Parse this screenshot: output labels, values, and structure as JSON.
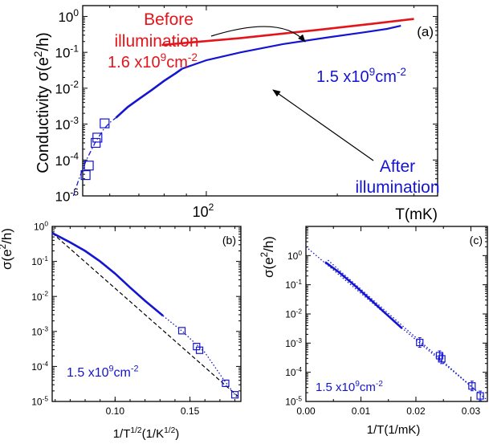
{
  "colors": {
    "red": "#e4141b",
    "blue": "#1414d2",
    "black": "#000000"
  },
  "chart_data": [
    {
      "id": "a",
      "type": "line",
      "panel_label": "(a)",
      "xlabel": "T(mK)",
      "ylabel_main": "Conductivity σ(e",
      "ylabel_sup": "2",
      "ylabel_end": "/h)",
      "x_scale": "log",
      "y_scale": "log",
      "xlim": [
        52,
        340
      ],
      "ylim": [
        1e-05,
        2
      ],
      "xticks": [
        {
          "value": 100,
          "base": "10",
          "exp": "2"
        }
      ],
      "yticks": [
        {
          "value": 1,
          "base": "10",
          "exp": "0"
        },
        {
          "value": 0.1,
          "base": "10",
          "exp": "-1"
        },
        {
          "value": 0.01,
          "base": "10",
          "exp": "-2"
        },
        {
          "value": 0.001,
          "base": "10",
          "exp": "-3"
        },
        {
          "value": 0.0001,
          "base": "10",
          "exp": "-4"
        },
        {
          "value": 1e-05,
          "base": "10",
          "exp": "-5"
        }
      ],
      "series": [
        {
          "style": "red-line",
          "x": [
            79,
            120,
            180,
            240,
            300
          ],
          "y": [
            0.16,
            0.25,
            0.42,
            0.62,
            0.85
          ]
        },
        {
          "style": "blue-line",
          "x": [
            88,
            100,
            120,
            150,
            190,
            230,
            260,
            280
          ],
          "y": [
            0.035,
            0.06,
            0.1,
            0.17,
            0.26,
            0.36,
            0.45,
            0.55
          ]
        },
        {
          "style": "blue-thick",
          "x": [
            62,
            66,
            70,
            75,
            80,
            85,
            88
          ],
          "y": [
            0.0015,
            0.003,
            0.005,
            0.009,
            0.016,
            0.026,
            0.035
          ]
        },
        {
          "style": "blue-dashdot",
          "x": [
            49.5,
            51,
            53,
            55.5,
            58,
            60,
            62
          ],
          "y": [
            1e-05,
            3e-05,
            0.0001,
            0.0003,
            0.0007,
            0.0011,
            0.0015
          ]
        },
        {
          "style": "blue-squares",
          "x": [
            52.8,
            53.7,
            55.7,
            56.2,
            58.4
          ],
          "y": [
            3.8e-05,
            7e-05,
            0.0003,
            0.00042,
            0.00105
          ]
        }
      ],
      "annotations": {
        "before_line1": "Before",
        "before_line2": "illumination",
        "before_line3_main": "1.6 x10",
        "before_line3_sup1": "9",
        "before_line3_mid": "cm",
        "before_line3_sup2": "-2",
        "blue_density_main": "1.5 x10",
        "blue_density_sup1": "9",
        "blue_density_mid": "cm",
        "blue_density_sup2": "-2",
        "after_line1": "After",
        "after_line2": "illumination"
      }
    },
    {
      "id": "b",
      "type": "line",
      "panel_label": "(b)",
      "xlabel_main": "1/T",
      "xlabel_sup1": "1/2",
      "xlabel_mid": "(1/K",
      "xlabel_sup2": "1/2",
      "xlabel_end": ")",
      "ylabel_main": "σ(e",
      "ylabel_sup": "2",
      "ylabel_end": "/h)",
      "x_scale": "linear",
      "y_scale": "log",
      "xlim": [
        0.058,
        0.184
      ],
      "ylim": [
        1e-05,
        1
      ],
      "xticks": [
        {
          "value": 0.1,
          "label": "0.10"
        },
        {
          "value": 0.15,
          "label": "0.15"
        }
      ],
      "yticks": [
        {
          "value": 1,
          "base": "10",
          "exp": "0"
        },
        {
          "value": 0.1,
          "base": "10",
          "exp": "-1"
        },
        {
          "value": 0.01,
          "base": "10",
          "exp": "-2"
        },
        {
          "value": 0.001,
          "base": "10",
          "exp": "-3"
        },
        {
          "value": 0.0001,
          "base": "10",
          "exp": "-4"
        },
        {
          "value": 1e-05,
          "base": "10",
          "exp": "-5"
        }
      ],
      "series": [
        {
          "style": "black-dashed",
          "x": [
            0.058,
            0.182
          ],
          "y": [
            0.65,
            1.4e-05
          ]
        },
        {
          "style": "blue-thick",
          "x": [
            0.058,
            0.07,
            0.08,
            0.09,
            0.1,
            0.11,
            0.12,
            0.132
          ],
          "y": [
            0.65,
            0.35,
            0.2,
            0.1,
            0.045,
            0.018,
            0.0075,
            0.0028
          ]
        },
        {
          "style": "blue-dotted",
          "x": [
            0.132,
            0.145,
            0.16,
            0.172,
            0.182
          ],
          "y": [
            0.0028,
            0.001,
            0.00025,
            4.5e-05,
            1.2e-05
          ]
        },
        {
          "style": "blue-squares",
          "x": [
            0.1446,
            0.1544,
            0.1564,
            0.1738,
            0.18
          ],
          "y": [
            0.00105,
            0.00037,
            0.00029,
            3.3e-05,
            1.55e-05
          ]
        }
      ],
      "annotations": {
        "density_main": "1.5 x10",
        "density_sup1": "9",
        "density_mid": "cm",
        "density_sup2": "-2"
      }
    },
    {
      "id": "c",
      "type": "line",
      "panel_label": "(c)",
      "xlabel": "1/T(1/mK)",
      "ylabel_main": "σ(e",
      "ylabel_sup": "2",
      "ylabel_end": "/h)",
      "x_scale": "linear",
      "y_scale": "log",
      "xlim": [
        0,
        0.033
      ],
      "ylim": [
        1e-05,
        10
      ],
      "xticks": [
        {
          "value": 0,
          "label": "0.00"
        },
        {
          "value": 0.01,
          "label": "0.01"
        },
        {
          "value": 0.02,
          "label": "0.02"
        },
        {
          "value": 0.03,
          "label": "0.03"
        }
      ],
      "yticks": [
        {
          "value": 1,
          "base": "10",
          "exp": "0"
        },
        {
          "value": 0.1,
          "base": "10",
          "exp": "-1"
        },
        {
          "value": 0.01,
          "base": "10",
          "exp": "-2"
        },
        {
          "value": 0.001,
          "base": "10",
          "exp": "-3"
        },
        {
          "value": 0.0001,
          "base": "10",
          "exp": "-4"
        },
        {
          "value": 1e-05,
          "base": "10",
          "exp": "-5"
        }
      ],
      "series": [
        {
          "style": "blue-dotted",
          "x": [
            0,
            0.033
          ],
          "y": [
            2,
            1.1e-05
          ]
        },
        {
          "style": "blue-dotted",
          "x": [
            0.004,
            0.0325
          ],
          "y": [
            0.7,
            1.3e-05
          ]
        },
        {
          "style": "blue-thick",
          "x": [
            0.0035,
            0.006,
            0.009,
            0.012,
            0.015,
            0.0175
          ],
          "y": [
            0.6,
            0.27,
            0.09,
            0.028,
            0.0085,
            0.0032
          ]
        },
        {
          "style": "blue-squares-err",
          "x": [
            0.0207,
            0.0243,
            0.0247,
            0.0302,
            0.0317
          ],
          "y": [
            0.00105,
            0.00037,
            0.00029,
            3.4e-05,
            1.55e-05
          ]
        }
      ],
      "annotations": {
        "density_main": "1.5 x10",
        "density_sup1": "9",
        "density_mid": "cm",
        "density_sup2": "-2"
      }
    }
  ]
}
